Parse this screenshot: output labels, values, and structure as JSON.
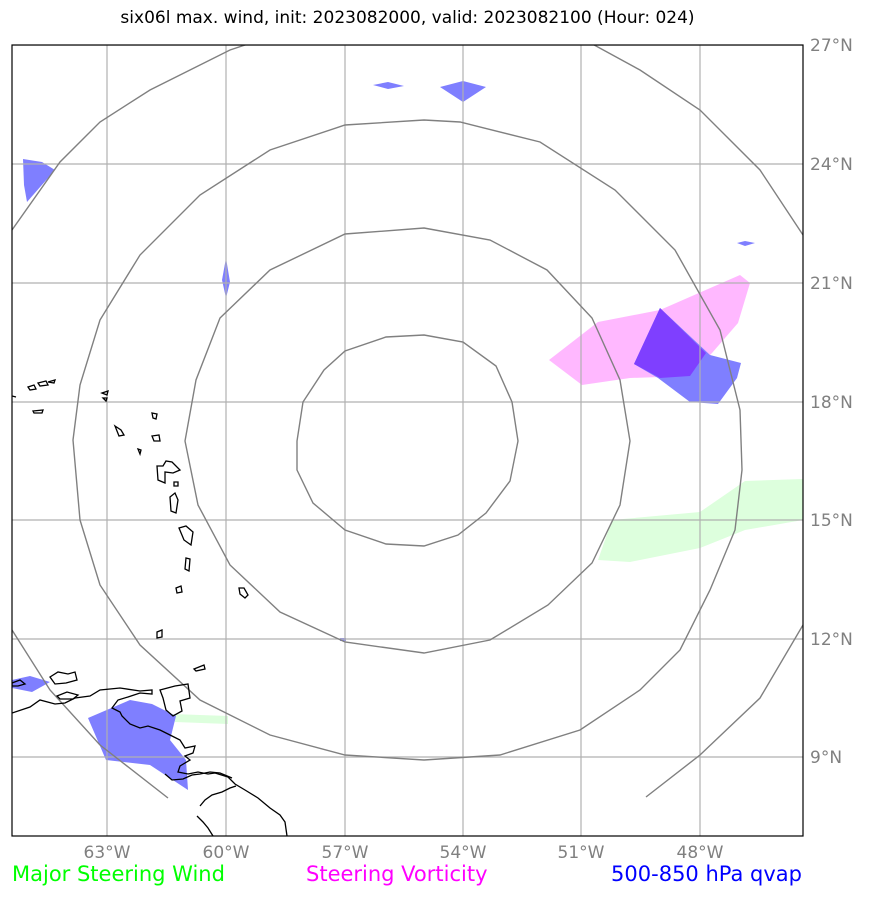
{
  "title": "six06l max. wind, init: 2023082000, valid: 2023082100 (Hour: 024)",
  "axes": {
    "lat_labels": [
      "27°N",
      "24°N",
      "21°N",
      "18°N",
      "15°N",
      "12°N",
      "9°N"
    ],
    "lon_labels": [
      "63°W",
      "60°W",
      "57°W",
      "54°W",
      "51°W",
      "48°W"
    ]
  },
  "legend": {
    "items": [
      {
        "label": "Major Steering Wind",
        "color": "#00ff00"
      },
      {
        "label": "Steering Vorticity",
        "color": "#ff00ff"
      },
      {
        "label": "500-850 hPa qvap",
        "color": "#0000ff"
      }
    ]
  },
  "colors": {
    "wind_fill": "#ddffdd",
    "vorticity_fill": "#ffb8ff",
    "qvap_fill": "#7f7fff",
    "overlap_fill": "#7f3fff",
    "range_rings": "#808080",
    "coastline": "#000000"
  }
}
